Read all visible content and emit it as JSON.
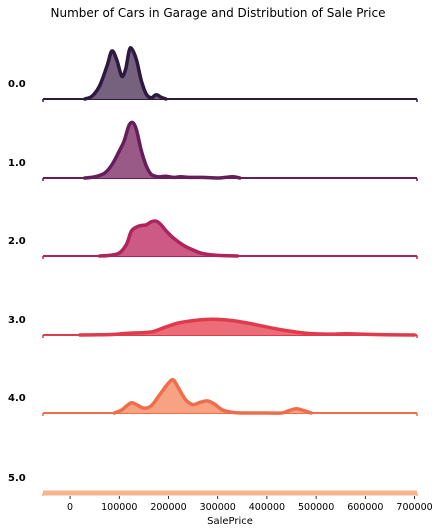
{
  "chart_data": {
    "type": "area",
    "title": "Number of Cars in Garage and Distribution of Sale Price",
    "xlabel": "SalePrice",
    "ylabel": "",
    "xlim": [
      -55000,
      705000
    ],
    "xticks": [
      0,
      100000,
      200000,
      300000,
      400000,
      500000,
      600000,
      700000
    ],
    "xtick_labels": [
      "0",
      "100000",
      "200000",
      "300000",
      "400000",
      "500000",
      "600000",
      "700000"
    ],
    "grid": false,
    "legend": "none",
    "series": [
      {
        "name": "0.0",
        "color": "#2d1a3f",
        "fill": "#76617f",
        "points": [
          [
            30000,
            0
          ],
          [
            45000,
            0.05
          ],
          [
            60000,
            0.22
          ],
          [
            75000,
            0.55
          ],
          [
            85000,
            0.8
          ],
          [
            95000,
            0.65
          ],
          [
            105000,
            0.38
          ],
          [
            113000,
            0.5
          ],
          [
            120000,
            0.8
          ],
          [
            125000,
            0.84
          ],
          [
            135000,
            0.65
          ],
          [
            145000,
            0.3
          ],
          [
            155000,
            0.08
          ],
          [
            165000,
            0.02
          ],
          [
            175000,
            0.07
          ],
          [
            185000,
            0.03
          ],
          [
            195000,
            0.0
          ]
        ]
      },
      {
        "name": "1.0",
        "color": "#651e59",
        "fill": "#9a5a88",
        "points": [
          [
            30000,
            0
          ],
          [
            50000,
            0.02
          ],
          [
            70000,
            0.08
          ],
          [
            85000,
            0.22
          ],
          [
            100000,
            0.45
          ],
          [
            110000,
            0.62
          ],
          [
            120000,
            0.88
          ],
          [
            128000,
            0.92
          ],
          [
            135000,
            0.8
          ],
          [
            145000,
            0.45
          ],
          [
            155000,
            0.2
          ],
          [
            165000,
            0.06
          ],
          [
            180000,
            0.02
          ],
          [
            195000,
            0.03
          ],
          [
            210000,
            0.01
          ],
          [
            225000,
            0.02
          ],
          [
            245000,
            0.01
          ],
          [
            270000,
            0.01
          ],
          [
            300000,
            0.0
          ],
          [
            330000,
            0.02
          ],
          [
            345000,
            0.0
          ]
        ]
      },
      {
        "name": "2.0",
        "color": "#b0245d",
        "fill": "#cc5a85",
        "points": [
          [
            60000,
            0
          ],
          [
            80000,
            0.01
          ],
          [
            100000,
            0.05
          ],
          [
            115000,
            0.2
          ],
          [
            125000,
            0.42
          ],
          [
            140000,
            0.5
          ],
          [
            155000,
            0.52
          ],
          [
            165000,
            0.57
          ],
          [
            175000,
            0.58
          ],
          [
            185000,
            0.52
          ],
          [
            195000,
            0.42
          ],
          [
            210000,
            0.3
          ],
          [
            230000,
            0.18
          ],
          [
            250000,
            0.1
          ],
          [
            270000,
            0.04
          ],
          [
            300000,
            0.01
          ],
          [
            340000,
            0.0
          ]
        ]
      },
      {
        "name": "3.0",
        "color": "#e03a4d",
        "fill": "#ec6c79",
        "points": [
          [
            20000,
            0
          ],
          [
            60000,
            0.004
          ],
          [
            90000,
            0.01
          ],
          [
            120000,
            0.03
          ],
          [
            150000,
            0.04
          ],
          [
            170000,
            0.06
          ],
          [
            190000,
            0.12
          ],
          [
            220000,
            0.2
          ],
          [
            250000,
            0.24
          ],
          [
            280000,
            0.26
          ],
          [
            300000,
            0.26
          ],
          [
            330000,
            0.24
          ],
          [
            360000,
            0.2
          ],
          [
            390000,
            0.15
          ],
          [
            420000,
            0.1
          ],
          [
            450000,
            0.06
          ],
          [
            480000,
            0.03
          ],
          [
            520000,
            0.015
          ],
          [
            560000,
            0.02
          ],
          [
            600000,
            0.012
          ],
          [
            640000,
            0.005
          ],
          [
            700000,
            0.0
          ]
        ]
      },
      {
        "name": "4.0",
        "color": "#ee6e4c",
        "fill": "#f6a283",
        "points": [
          [
            90000,
            0
          ],
          [
            105000,
            0.05
          ],
          [
            115000,
            0.12
          ],
          [
            125000,
            0.17
          ],
          [
            135000,
            0.14
          ],
          [
            150000,
            0.08
          ],
          [
            165000,
            0.12
          ],
          [
            180000,
            0.28
          ],
          [
            200000,
            0.5
          ],
          [
            210000,
            0.55
          ],
          [
            220000,
            0.42
          ],
          [
            235000,
            0.22
          ],
          [
            250000,
            0.14
          ],
          [
            265000,
            0.18
          ],
          [
            280000,
            0.2
          ],
          [
            295000,
            0.14
          ],
          [
            310000,
            0.05
          ],
          [
            330000,
            0.01
          ],
          [
            350000,
            0.0
          ],
          [
            400000,
            0.0
          ],
          [
            430000,
            0.0
          ],
          [
            445000,
            0.04
          ],
          [
            460000,
            0.07
          ],
          [
            475000,
            0.04
          ],
          [
            490000,
            0.0
          ]
        ]
      },
      {
        "name": "5.0",
        "color": "#f6b48c",
        "fill": "#f6b48c",
        "points": []
      }
    ]
  }
}
